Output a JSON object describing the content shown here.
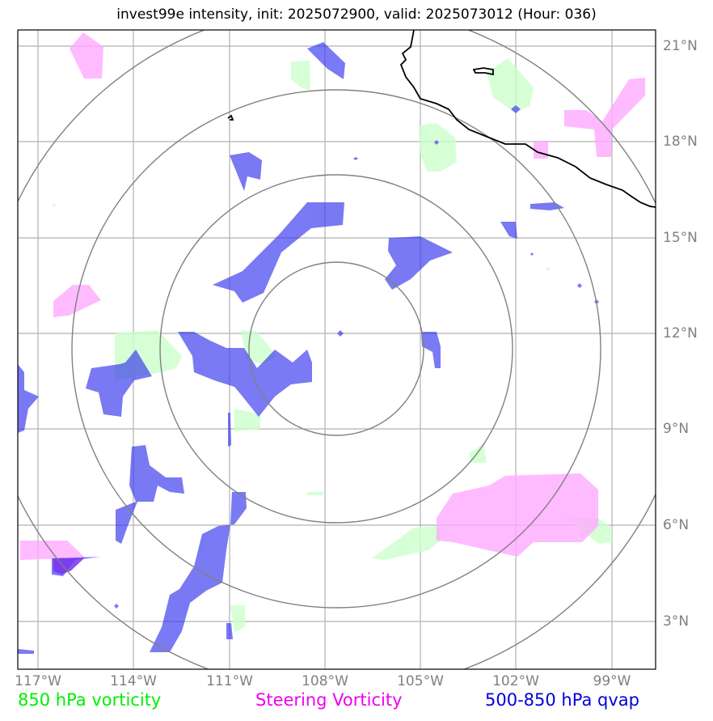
{
  "title": "invest99e intensity, init: 2025072900, valid: 2025073012 (Hour: 036)",
  "longitude_labels": [
    "117°W",
    "114°W",
    "111°W",
    "108°W",
    "105°W",
    "102°W",
    "99°W"
  ],
  "latitude_labels": [
    "21°N",
    "18°N",
    "15°N",
    "12°N",
    "9°N",
    "6°N",
    "3°N"
  ],
  "legend": {
    "green": "850 hPa vorticity",
    "magenta": "Steering Vorticity",
    "blue": "500-850 hPa qvap"
  },
  "colors": {
    "green_field": "#ccffcc",
    "magenta_field": "#ffaaff",
    "blue_field": "#3333ee",
    "grid": "#b0b0b0",
    "range_rings": "#808080",
    "coastline": "#000000"
  }
}
